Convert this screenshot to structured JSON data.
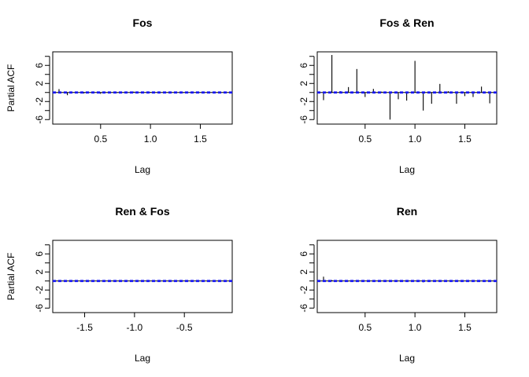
{
  "chart_data": [
    {
      "type": "bar",
      "subtype": "partial-acf",
      "title": "Fos",
      "xlabel": "Lag",
      "ylabel": "Partial ACF",
      "xlim": [
        0.02,
        1.82
      ],
      "ylim": [
        -7,
        9
      ],
      "xticks": [
        0.5,
        1.0,
        1.5
      ],
      "xtick_labels": [
        "0.5",
        "1.0",
        "1.5"
      ],
      "yticks": [
        -6,
        -2,
        2,
        6
      ],
      "ytick_labels": [
        "-6",
        "-2",
        "2",
        "6"
      ],
      "conf_limit": 0.12,
      "conf_color": "#1a1aff",
      "x": [
        0.083,
        0.167,
        0.25,
        0.333,
        0.417,
        0.5,
        0.583,
        0.667,
        0.75,
        0.833,
        0.917,
        1.0,
        1.083,
        1.167,
        1.25,
        1.333,
        1.417,
        1.5,
        1.583,
        1.667,
        1.75
      ],
      "values": [
        0.75,
        -0.6,
        0.1,
        -0.2,
        0.05,
        -0.3,
        0.1,
        -0.1,
        0.05,
        0.2,
        -0.2,
        0.1,
        -0.1,
        0.05,
        0.1,
        -0.1,
        0.05,
        0.05,
        -0.05,
        0.05,
        0.0
      ]
    },
    {
      "type": "bar",
      "subtype": "partial-acf",
      "title": "Fos & Ren",
      "xlabel": "Lag",
      "ylabel": "",
      "xlim": [
        0.02,
        1.82
      ],
      "ylim": [
        -7,
        9
      ],
      "xticks": [
        0.5,
        1.0,
        1.5
      ],
      "xtick_labels": [
        "0.5",
        "1.0",
        "1.5"
      ],
      "yticks": [
        -6,
        -2,
        2,
        6
      ],
      "ytick_labels": [
        "-6",
        "-2",
        "2",
        "6"
      ],
      "conf_limit": 0.12,
      "conf_color": "#1a1aff",
      "x": [
        0.083,
        0.167,
        0.25,
        0.333,
        0.417,
        0.5,
        0.583,
        0.667,
        0.75,
        0.833,
        0.917,
        1.0,
        1.083,
        1.167,
        1.25,
        1.333,
        1.417,
        1.5,
        1.583,
        1.667,
        1.75
      ],
      "values": [
        -1.7,
        8.3,
        0.3,
        1.2,
        5.2,
        -1.0,
        0.8,
        0.2,
        -6.0,
        -1.5,
        -1.8,
        7.0,
        -4.0,
        -2.5,
        1.9,
        0.3,
        -2.5,
        -0.8,
        -1.0,
        1.3,
        -2.4
      ]
    },
    {
      "type": "bar",
      "subtype": "partial-acf",
      "title": "Ren & Fos",
      "xlabel": "Lag",
      "ylabel": "Partial ACF",
      "xlim": [
        -1.82,
        -0.02
      ],
      "ylim": [
        -7,
        9
      ],
      "xticks": [
        -1.5,
        -1.0,
        -0.5
      ],
      "xtick_labels": [
        "-1.5",
        "-1.0",
        "-0.5"
      ],
      "yticks": [
        -6,
        -2,
        2,
        6
      ],
      "ytick_labels": [
        "-6",
        "-2",
        "2",
        "6"
      ],
      "conf_limit": 0.12,
      "conf_color": "#1a1aff",
      "x": [
        -1.75,
        -1.667,
        -1.583,
        -1.5,
        -1.417,
        -1.333,
        -1.25,
        -1.167,
        -1.083,
        -1.0,
        -0.917,
        -0.833,
        -0.75,
        -0.667,
        -0.583,
        -0.5,
        -0.417,
        -0.333,
        -0.25,
        -0.167,
        -0.083
      ],
      "values": [
        0.05,
        -0.05,
        0.05,
        0.0,
        -0.05,
        0.05,
        0.0,
        -0.05,
        0.05,
        0.05,
        -0.05,
        0.0,
        0.05,
        -0.05,
        0.0,
        0.05,
        -0.05,
        0.05,
        0.0,
        0.05,
        -0.05
      ]
    },
    {
      "type": "bar",
      "subtype": "partial-acf",
      "title": "Ren",
      "xlabel": "Lag",
      "ylabel": "",
      "xlim": [
        0.02,
        1.82
      ],
      "ylim": [
        -7,
        9
      ],
      "xticks": [
        0.5,
        1.0,
        1.5
      ],
      "xtick_labels": [
        "0.5",
        "1.0",
        "1.5"
      ],
      "yticks": [
        -6,
        -2,
        2,
        6
      ],
      "ytick_labels": [
        "-6",
        "-2",
        "2",
        "6"
      ],
      "conf_limit": 0.12,
      "conf_color": "#1a1aff",
      "x": [
        0.083,
        0.167,
        0.25,
        0.333,
        0.417,
        0.5,
        0.583,
        0.667,
        0.75,
        0.833,
        0.917,
        1.0,
        1.083,
        1.167,
        1.25,
        1.333,
        1.417,
        1.5,
        1.583,
        1.667,
        1.75
      ],
      "values": [
        0.95,
        0.2,
        0.1,
        -0.1,
        0.05,
        0.0,
        0.1,
        -0.05,
        0.05,
        0.0,
        0.05,
        0.05,
        -0.3,
        0.05,
        0.0,
        0.05,
        -0.05,
        0.05,
        0.0,
        0.05,
        0.0
      ]
    }
  ]
}
